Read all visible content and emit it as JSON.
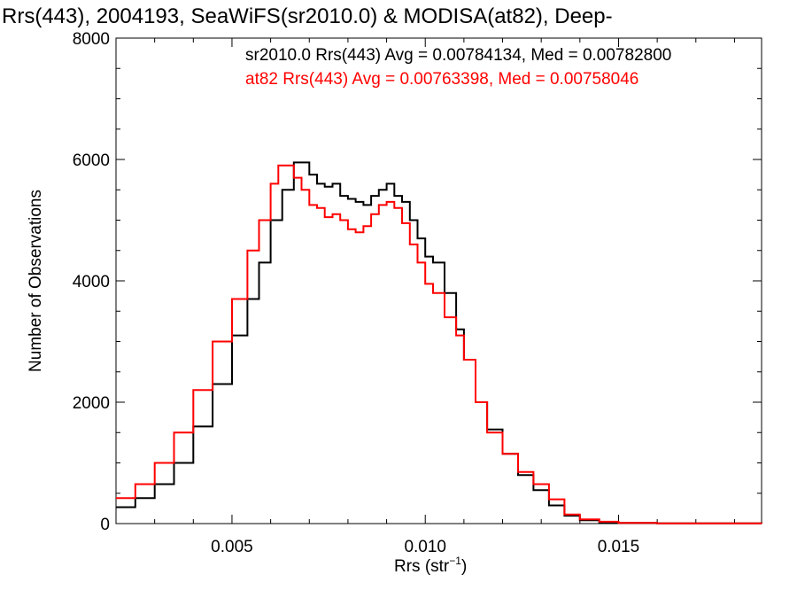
{
  "chart_data": {
    "type": "line",
    "title": "Rrs(443), 2004193, SeaWiFS(sr2010.0) & MODISA(at82), Deep-",
    "xlabel_main": "Rrs (str",
    "xlabel_sup": "−1",
    "xlabel_close": ")",
    "ylabel": "Number of Observations",
    "xlim": [
      0.002,
      0.0187
    ],
    "ylim": [
      0,
      8000
    ],
    "xticks": [
      0.005,
      0.01,
      0.015
    ],
    "xtick_labels": [
      "0.005",
      "0.010",
      "0.015"
    ],
    "yticks": [
      0,
      2000,
      4000,
      6000,
      8000
    ],
    "ytick_labels": [
      "0",
      "2000",
      "4000",
      "6000",
      "8000"
    ],
    "grid": false,
    "legend_position": "top-right",
    "style": "step",
    "series": [
      {
        "name": "sr2010.0",
        "label": "sr2010.0 Rrs(443) Avg = 0.00784134, Med = 0.00782800",
        "color": "#000000",
        "points": [
          [
            0.002,
            270
          ],
          [
            0.0025,
            420
          ],
          [
            0.003,
            650
          ],
          [
            0.0035,
            1000
          ],
          [
            0.004,
            1600
          ],
          [
            0.0045,
            2300
          ],
          [
            0.005,
            3100
          ],
          [
            0.0054,
            3700
          ],
          [
            0.0057,
            4300
          ],
          [
            0.006,
            5000
          ],
          [
            0.0063,
            5500
          ],
          [
            0.0066,
            5950
          ],
          [
            0.0068,
            5950
          ],
          [
            0.007,
            5750
          ],
          [
            0.0072,
            5600
          ],
          [
            0.0074,
            5550
          ],
          [
            0.0076,
            5600
          ],
          [
            0.0078,
            5400
          ],
          [
            0.008,
            5350
          ],
          [
            0.0082,
            5300
          ],
          [
            0.0084,
            5250
          ],
          [
            0.0086,
            5400
          ],
          [
            0.0088,
            5500
          ],
          [
            0.009,
            5600
          ],
          [
            0.0092,
            5400
          ],
          [
            0.0094,
            5300
          ],
          [
            0.0096,
            5000
          ],
          [
            0.0098,
            4700
          ],
          [
            0.01,
            4400
          ],
          [
            0.0102,
            4300
          ],
          [
            0.0105,
            3800
          ],
          [
            0.0108,
            3200
          ],
          [
            0.011,
            2700
          ],
          [
            0.0113,
            2000
          ],
          [
            0.0116,
            1550
          ],
          [
            0.012,
            1150
          ],
          [
            0.0124,
            800
          ],
          [
            0.0128,
            550
          ],
          [
            0.0132,
            300
          ],
          [
            0.0136,
            130
          ],
          [
            0.014,
            55
          ],
          [
            0.0145,
            20
          ],
          [
            0.015,
            10
          ],
          [
            0.016,
            5
          ],
          [
            0.0187,
            0
          ]
        ]
      },
      {
        "name": "at82",
        "label": "at82 Rrs(443) Avg = 0.00763398, Med = 0.00758046",
        "color": "#ff0000",
        "points": [
          [
            0.002,
            420
          ],
          [
            0.0025,
            650
          ],
          [
            0.003,
            1000
          ],
          [
            0.0035,
            1500
          ],
          [
            0.004,
            2200
          ],
          [
            0.0045,
            3000
          ],
          [
            0.005,
            3700
          ],
          [
            0.0054,
            4500
          ],
          [
            0.0057,
            5000
          ],
          [
            0.006,
            5600
          ],
          [
            0.0062,
            5900
          ],
          [
            0.0064,
            5900
          ],
          [
            0.0066,
            5700
          ],
          [
            0.0068,
            5500
          ],
          [
            0.007,
            5250
          ],
          [
            0.0072,
            5200
          ],
          [
            0.0074,
            5050
          ],
          [
            0.0076,
            5100
          ],
          [
            0.0078,
            5000
          ],
          [
            0.008,
            4850
          ],
          [
            0.0082,
            4800
          ],
          [
            0.0084,
            4900
          ],
          [
            0.0086,
            5100
          ],
          [
            0.0088,
            5250
          ],
          [
            0.009,
            5300
          ],
          [
            0.0092,
            5200
          ],
          [
            0.0094,
            4950
          ],
          [
            0.0096,
            4600
          ],
          [
            0.0098,
            4300
          ],
          [
            0.01,
            3950
          ],
          [
            0.0102,
            3800
          ],
          [
            0.0105,
            3400
          ],
          [
            0.0108,
            3100
          ],
          [
            0.011,
            2700
          ],
          [
            0.0113,
            2000
          ],
          [
            0.0116,
            1500
          ],
          [
            0.012,
            1150
          ],
          [
            0.0124,
            850
          ],
          [
            0.0128,
            650
          ],
          [
            0.0132,
            400
          ],
          [
            0.0136,
            150
          ],
          [
            0.014,
            70
          ],
          [
            0.0145,
            30
          ],
          [
            0.015,
            10
          ],
          [
            0.016,
            5
          ],
          [
            0.0187,
            0
          ]
        ]
      }
    ]
  }
}
